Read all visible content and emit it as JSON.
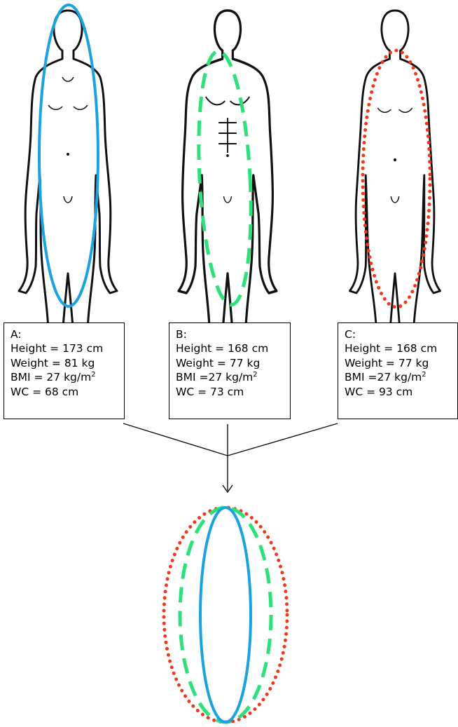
{
  "colors": {
    "a": "#1aa3e0",
    "b": "#2ee07a",
    "c": "#ee3a1c",
    "outline": "#111111"
  },
  "styles": {
    "a": "solid",
    "b": "dashed",
    "c": "dotted"
  },
  "boxes": {
    "a": {
      "label": "A:",
      "height": "Height = 173 cm",
      "weight": "Weight = 81 kg",
      "bmi": "BMI = 27 kg/m",
      "wc": "WC = 68 cm"
    },
    "b": {
      "label": "B:",
      "height": "Height = 168 cm",
      "weight": "Weight = 77 kg",
      "bmi": "BMI =27 kg/m",
      "wc": "WC = 73 cm"
    },
    "c": {
      "label": "C:",
      "height": "Height = 168 cm",
      "weight": "Weight = 77 kg",
      "bmi": "BMI =27 kg/m",
      "wc": "WC = 93 cm"
    }
  },
  "superscript": "2"
}
